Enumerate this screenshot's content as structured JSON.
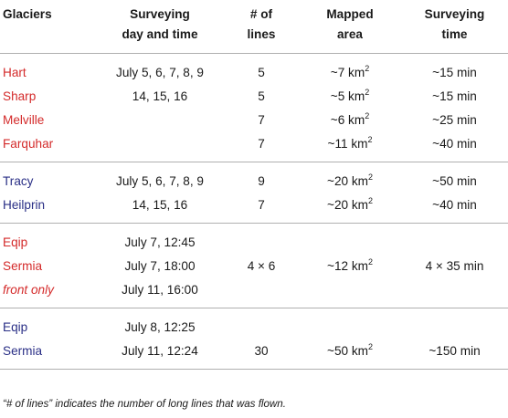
{
  "headers": {
    "glaciers": "Glaciers",
    "surveying_day_1": "Surveying",
    "surveying_day_2": "day and time",
    "lines_1": "# of",
    "lines_2": "lines",
    "mapped_1": "Mapped",
    "mapped_2": "area",
    "time_1": "Surveying",
    "time_2": "time"
  },
  "area_unit_exponent": "2",
  "colors": {
    "red": "#d42a2a",
    "blue": "#2a2f86"
  },
  "groups": [
    {
      "color": "red",
      "rows": [
        {
          "glacier": "Hart",
          "day": "July 5, 6, 7, 8, 9",
          "lines": "5",
          "area": "~7 km",
          "time": "~15 min"
        },
        {
          "glacier": "Sharp",
          "day": "14, 15, 16",
          "lines": "5",
          "area": "~5 km",
          "time": "~15 min"
        },
        {
          "glacier": "Melville",
          "day": "",
          "lines": "7",
          "area": "~6 km",
          "time": "~25 min"
        },
        {
          "glacier": "Farquhar",
          "day": "",
          "lines": "7",
          "area": "~11 km",
          "time": "~40 min"
        }
      ]
    },
    {
      "color": "blue",
      "rows": [
        {
          "glacier": "Tracy",
          "day": "July 5, 6, 7, 8, 9",
          "lines": "9",
          "area": "~20 km",
          "time": "~50 min"
        },
        {
          "glacier": "Heilprin",
          "day": "14, 15, 16",
          "lines": "7",
          "area": "~20 km",
          "time": "~40 min"
        }
      ]
    },
    {
      "color": "red",
      "rows": [
        {
          "glacier": "Eqip",
          "day": "July 7, 12:45",
          "lines": "",
          "area": "",
          "time": ""
        },
        {
          "glacier": "Sermia",
          "day": "July 7, 18:00",
          "lines": "4 × 6",
          "area": "~12 km",
          "time": "4 × 35 min"
        },
        {
          "glacier": "front only",
          "day": "July 11, 16:00",
          "lines": "",
          "area": "",
          "time": ""
        }
      ]
    },
    {
      "color": "blue",
      "rows": [
        {
          "glacier": "Eqip",
          "day": "July 8, 12:25",
          "lines": "",
          "area": "",
          "time": ""
        },
        {
          "glacier": "Sermia",
          "day": "July 11, 12:24",
          "lines": "30",
          "area": "~50 km",
          "time": "~150 min"
        }
      ]
    }
  ],
  "footnote": "“# of lines” indicates the number of long lines that was flown."
}
